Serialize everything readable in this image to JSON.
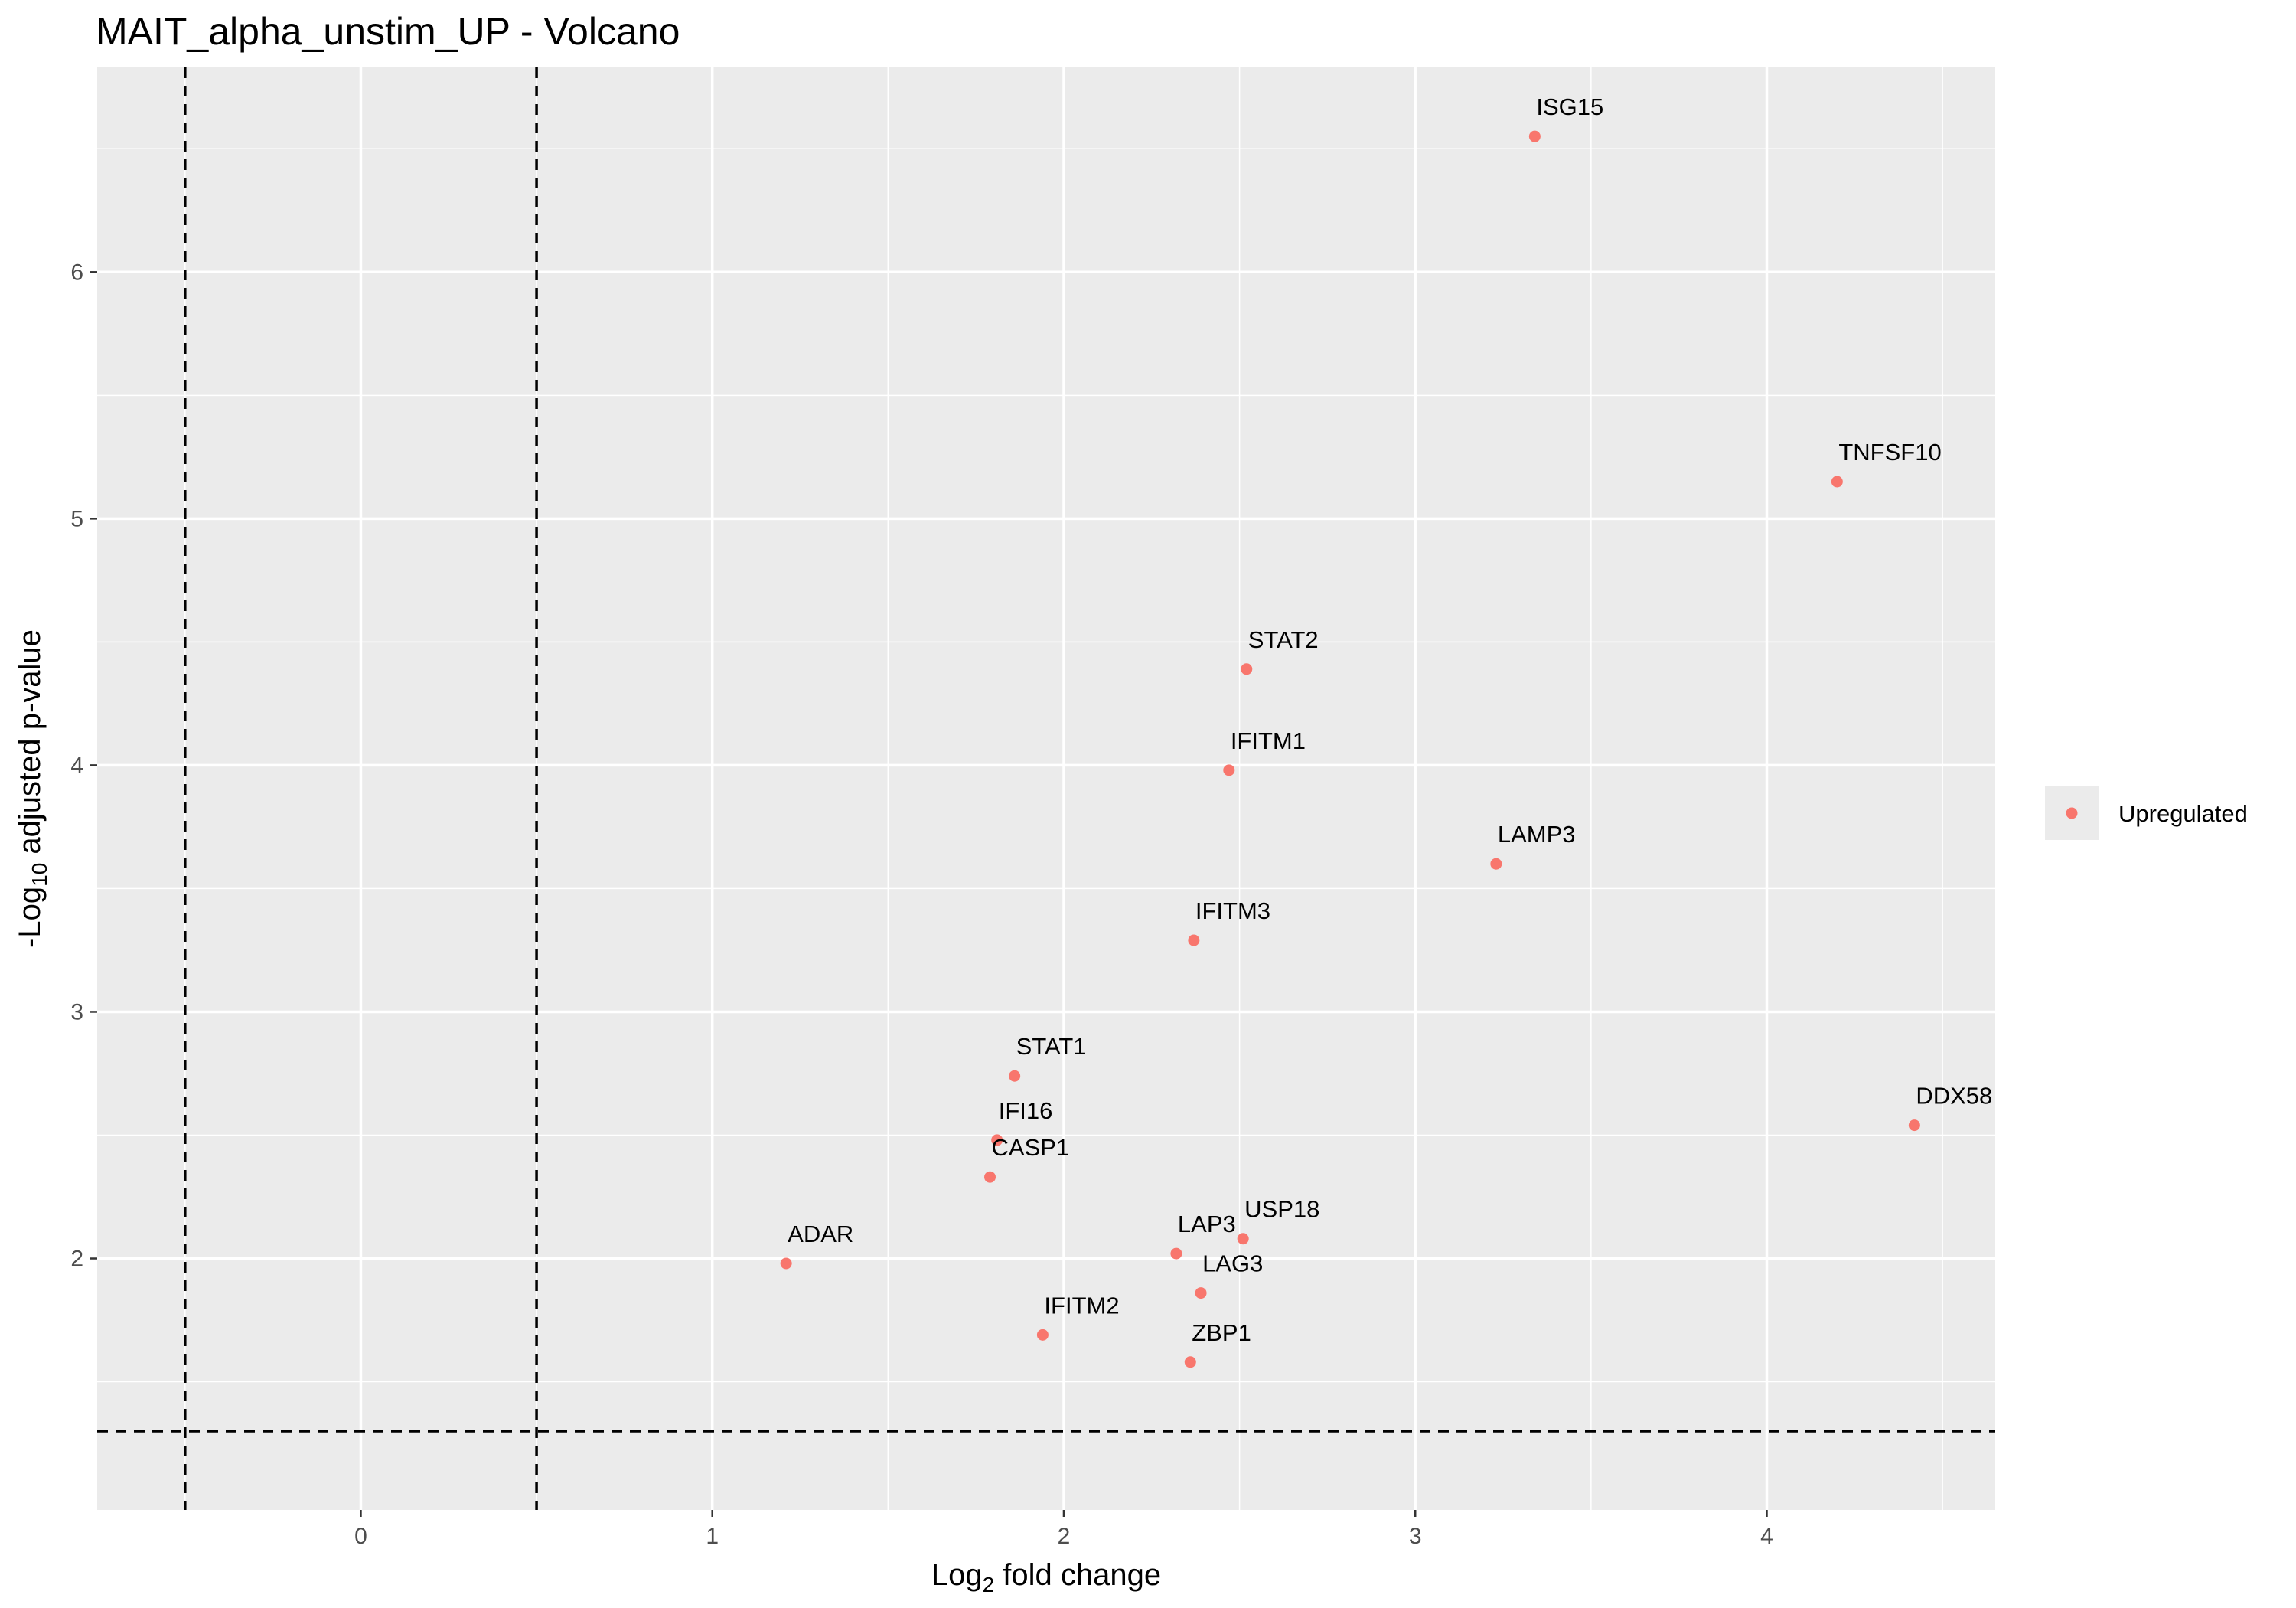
{
  "chart_data": {
    "type": "scatter",
    "title": "MAIT_alpha_unstim_UP - Volcano",
    "xlabel": {
      "prefix": "Log",
      "sub": "2",
      "suffix": " fold change"
    },
    "ylabel": {
      "prefix": "-Log",
      "sub": "10",
      "suffix": " adjusted p-value"
    },
    "xlim": [
      -0.75,
      4.65
    ],
    "ylim": [
      0.98,
      6.83
    ],
    "x_ticks": [
      0,
      1,
      2,
      3,
      4
    ],
    "y_ticks": [
      2,
      3,
      4,
      5,
      6
    ],
    "grid": true,
    "legend_position": "right",
    "thresholds": {
      "vertical_lines_x": [
        -0.5,
        0.5
      ],
      "horizontal_line_y": 1.3
    },
    "series": [
      {
        "name": "Upregulated",
        "color": "#f8766d",
        "points": [
          {
            "label": "ISG15",
            "x": 3.34,
            "y": 6.55
          },
          {
            "label": "TNFSF10",
            "x": 4.2,
            "y": 5.15
          },
          {
            "label": "STAT2",
            "x": 2.52,
            "y": 4.39
          },
          {
            "label": "IFITM1",
            "x": 2.47,
            "y": 3.98
          },
          {
            "label": "LAMP3",
            "x": 3.23,
            "y": 3.6
          },
          {
            "label": "IFITM3",
            "x": 2.37,
            "y": 3.29
          },
          {
            "label": "STAT1",
            "x": 1.86,
            "y": 2.74
          },
          {
            "label": "DDX58",
            "x": 4.42,
            "y": 2.54
          },
          {
            "label": "IFI16",
            "x": 1.81,
            "y": 2.48
          },
          {
            "label": "CASP1",
            "x": 1.79,
            "y": 2.33
          },
          {
            "label": "USP18",
            "x": 2.51,
            "y": 2.08
          },
          {
            "label": "LAP3",
            "x": 2.32,
            "y": 2.02
          },
          {
            "label": "ADAR",
            "x": 1.21,
            "y": 1.98
          },
          {
            "label": "LAG3",
            "x": 2.39,
            "y": 1.86
          },
          {
            "label": "IFITM2",
            "x": 1.94,
            "y": 1.69
          },
          {
            "label": "ZBP1",
            "x": 2.36,
            "y": 1.58
          }
        ]
      }
    ]
  }
}
